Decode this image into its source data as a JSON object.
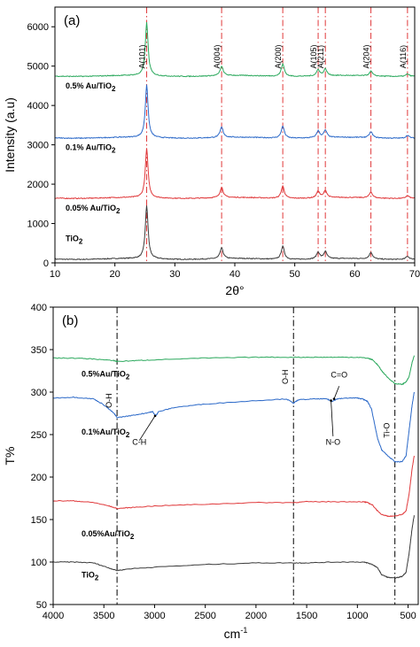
{
  "chart_data": [
    {
      "type": "line",
      "panel_label": "(a)",
      "xlabel": "2θ°",
      "ylabel": "Intensity (a.u)",
      "xlim": [
        10,
        70
      ],
      "ylim": [
        0,
        6500
      ],
      "xticks": [
        10,
        20,
        30,
        40,
        50,
        60,
        70
      ],
      "yticks": [
        0,
        1000,
        2000,
        3000,
        4000,
        5000,
        6000
      ],
      "grid": false,
      "reference_lines": [
        25.3,
        37.8,
        48.0,
        53.9,
        55.1,
        62.7,
        68.8
      ],
      "peak_labels": [
        {
          "text": "A(101)",
          "x": 25.3
        },
        {
          "text": "A(004)",
          "x": 37.8
        },
        {
          "text": "A(200)",
          "x": 48.0
        },
        {
          "text": "A(105)",
          "x": 53.9
        },
        {
          "text": "A(211)",
          "x": 55.1
        },
        {
          "text": "A(204)",
          "x": 62.7
        },
        {
          "text": "A(116)",
          "x": 68.8
        }
      ],
      "series": [
        {
          "name": "TiO",
          "sub": "2",
          "color": "#3a3a3a",
          "baseline": 100,
          "label_y": 550,
          "peaks": [
            [
              25.3,
              1350
            ],
            [
              37.8,
              270
            ],
            [
              48.0,
              330
            ],
            [
              53.9,
              170
            ],
            [
              55.1,
              180
            ],
            [
              62.7,
              170
            ],
            [
              68.8,
              80
            ]
          ]
        },
        {
          "name": "0.05% Au/TiO",
          "sub": "2",
          "color": "#e0393b",
          "baseline": 1650,
          "label_y": 1330,
          "peaks": [
            [
              25.3,
              1250
            ],
            [
              37.8,
              260
            ],
            [
              48.0,
              310
            ],
            [
              53.9,
              170
            ],
            [
              55.1,
              180
            ],
            [
              62.7,
              150
            ],
            [
              68.8,
              70
            ]
          ]
        },
        {
          "name": "0.1% Au/TiO",
          "sub": "2",
          "color": "#2a68c8",
          "baseline": 3180,
          "label_y": 2870,
          "peaks": [
            [
              25.3,
              1330
            ],
            [
              37.8,
              260
            ],
            [
              48.0,
              300
            ],
            [
              53.9,
              170
            ],
            [
              55.1,
              180
            ],
            [
              62.7,
              150
            ],
            [
              68.8,
              70
            ]
          ]
        },
        {
          "name": "0.5% Au/TiO",
          "sub": "2",
          "color": "#2aa85c",
          "baseline": 4750,
          "label_y": 4430,
          "peaks": [
            [
              25.3,
              1350
            ],
            [
              37.8,
              230
            ],
            [
              48.0,
              310
            ],
            [
              53.9,
              160
            ],
            [
              55.1,
              170
            ],
            [
              62.7,
              120
            ],
            [
              68.8,
              60
            ]
          ]
        }
      ]
    },
    {
      "type": "line",
      "panel_label": "(b)",
      "xlabel": "cm",
      "xlabel_sup": "-1",
      "ylabel": "T%",
      "xlim": [
        4000,
        400
      ],
      "ylim": [
        50,
        400
      ],
      "xticks": [
        4000,
        3500,
        3000,
        2500,
        2000,
        1500,
        1000,
        500
      ],
      "yticks": [
        50,
        100,
        150,
        200,
        250,
        300,
        350,
        400
      ],
      "grid": false,
      "reference_lines": [
        3370,
        1630,
        630
      ],
      "annotations": [
        {
          "text": "O-H",
          "x": 3370,
          "y": 290,
          "rotated": true
        },
        {
          "text": "O-H",
          "x": 1630,
          "y": 318,
          "rotated": true
        },
        {
          "text": "Ti-O",
          "x": 630,
          "y": 255,
          "rotated": true
        },
        {
          "text": "C-H",
          "x": 3150,
          "y": 238
        },
        {
          "text": "C=O",
          "x": 1180,
          "y": 317
        },
        {
          "text": "N-O",
          "x": 1240,
          "y": 238
        }
      ],
      "series": [
        {
          "name": "TiO",
          "sub": "2",
          "color": "#3a3a3a",
          "label_y": 82,
          "points": [
            [
              4000,
              100
            ],
            [
              3800,
              100
            ],
            [
              3600,
              99
            ],
            [
              3450,
              93
            ],
            [
              3370,
              90
            ],
            [
              3250,
              92
            ],
            [
              3000,
              94
            ],
            [
              2500,
              97
            ],
            [
              2000,
              99
            ],
            [
              1630,
              99
            ],
            [
              1500,
              99
            ],
            [
              1200,
              100
            ],
            [
              950,
              100
            ],
            [
              900,
              99
            ],
            [
              850,
              97
            ],
            [
              800,
              93
            ],
            [
              760,
              85
            ],
            [
              700,
              82
            ],
            [
              630,
              81
            ],
            [
              560,
              83
            ],
            [
              520,
              88
            ],
            [
              490,
              110
            ],
            [
              460,
              140
            ],
            [
              440,
              155
            ]
          ]
        },
        {
          "name": "0.05%Au/TiO",
          "sub": "2",
          "color": "#e0393b",
          "label_y": 130,
          "points": [
            [
              4000,
              172
            ],
            [
              3800,
              172
            ],
            [
              3600,
              170
            ],
            [
              3450,
              166
            ],
            [
              3370,
              163
            ],
            [
              3250,
              164
            ],
            [
              3000,
              166
            ],
            [
              2500,
              168
            ],
            [
              2000,
              170
            ],
            [
              1630,
              170
            ],
            [
              1500,
              171
            ],
            [
              1200,
              171
            ],
            [
              950,
              171
            ],
            [
              900,
              170
            ],
            [
              850,
              167
            ],
            [
              800,
              160
            ],
            [
              760,
              156
            ],
            [
              700,
              154
            ],
            [
              630,
              154
            ],
            [
              560,
              156
            ],
            [
              520,
              160
            ],
            [
              490,
              180
            ],
            [
              460,
              210
            ],
            [
              440,
              225
            ]
          ]
        },
        {
          "name": "0.1%Au/TiO",
          "sub": "2",
          "color": "#2a68c8",
          "label_y": 250,
          "points": [
            [
              4000,
              293
            ],
            [
              3800,
              294
            ],
            [
              3600,
              292
            ],
            [
              3500,
              285
            ],
            [
              3400,
              275
            ],
            [
              3370,
              270
            ],
            [
              3250,
              272
            ],
            [
              3100,
              275
            ],
            [
              3020,
              277
            ],
            [
              2990,
              272
            ],
            [
              2960,
              277
            ],
            [
              2800,
              282
            ],
            [
              2500,
              286
            ],
            [
              2000,
              290
            ],
            [
              1700,
              292
            ],
            [
              1630,
              287
            ],
            [
              1580,
              291
            ],
            [
              1400,
              292
            ],
            [
              1300,
              292
            ],
            [
              1250,
              289
            ],
            [
              1200,
              292
            ],
            [
              1100,
              293
            ],
            [
              1000,
              293
            ],
            [
              950,
              292
            ],
            [
              900,
              289
            ],
            [
              860,
              280
            ],
            [
              830,
              262
            ],
            [
              800,
              245
            ],
            [
              760,
              232
            ],
            [
              700,
              225
            ],
            [
              630,
              218
            ],
            [
              560,
              218
            ],
            [
              520,
              225
            ],
            [
              490,
              255
            ],
            [
              460,
              285
            ],
            [
              440,
              300
            ]
          ]
        },
        {
          "name": "0.5%Au/TiO",
          "sub": "2",
          "color": "#2aa85c",
          "label_y": 318,
          "points": [
            [
              4000,
              340
            ],
            [
              3800,
              340
            ],
            [
              3600,
              339
            ],
            [
              3400,
              337
            ],
            [
              3370,
              336
            ],
            [
              3200,
              337
            ],
            [
              3000,
              338
            ],
            [
              2500,
              340
            ],
            [
              2000,
              341
            ],
            [
              1630,
              341
            ],
            [
              1400,
              341
            ],
            [
              1200,
              341
            ],
            [
              1000,
              341
            ],
            [
              900,
              340
            ],
            [
              850,
              338
            ],
            [
              800,
              332
            ],
            [
              760,
              325
            ],
            [
              700,
              317
            ],
            [
              630,
              310
            ],
            [
              560,
              309
            ],
            [
              520,
              312
            ],
            [
              490,
              318
            ],
            [
              460,
              335
            ],
            [
              440,
              343
            ]
          ]
        }
      ]
    }
  ]
}
